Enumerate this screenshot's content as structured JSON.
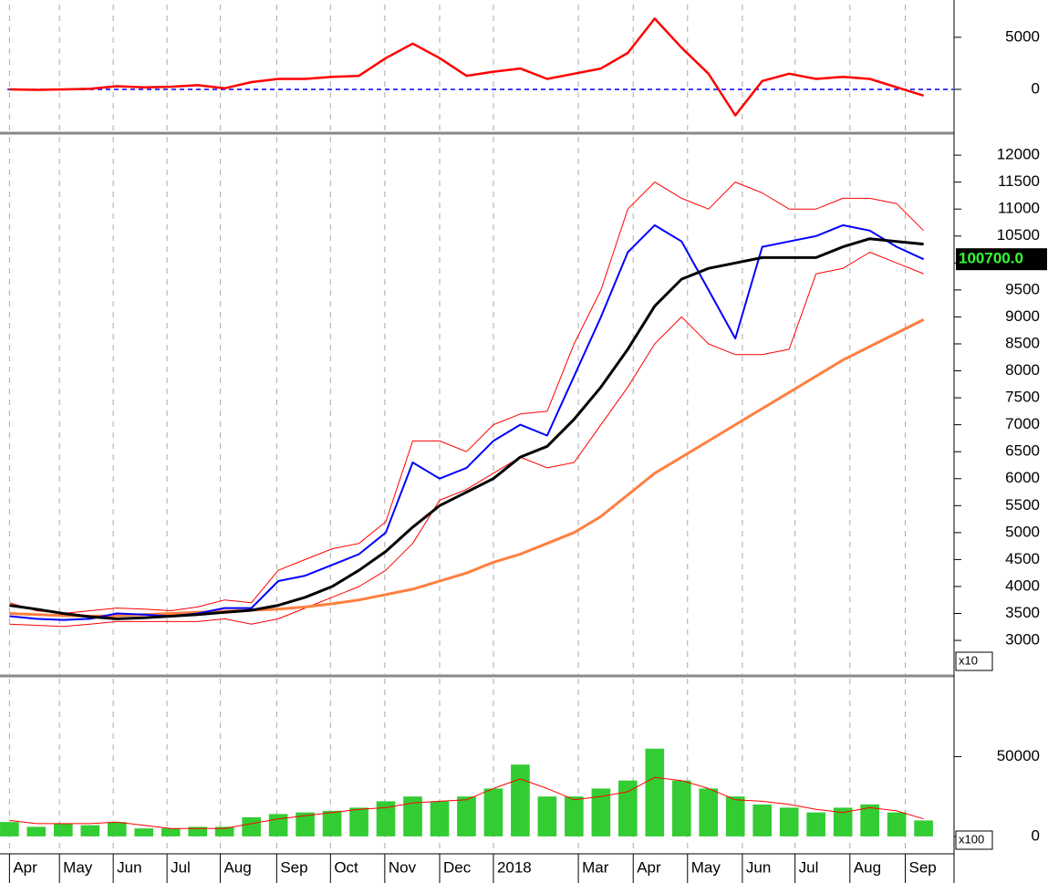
{
  "chart_data": [
    {
      "type": "line",
      "x": [
        0,
        0.5,
        1,
        1.5,
        2,
        2.5,
        3,
        3.5,
        4,
        4.5,
        5,
        5.5,
        6,
        6.5,
        7,
        7.5,
        8,
        8.5,
        9,
        9.5,
        10,
        10.5,
        11,
        11.5,
        12,
        12.5,
        13,
        13.5,
        14,
        14.5,
        15,
        15.5,
        16,
        16.5,
        17
      ],
      "xlim": [
        -0.04,
        17.55
      ],
      "ylim": [
        -3950,
        8150
      ],
      "yticks": [
        0,
        5000
      ],
      "reference_line": 0,
      "reference_color": "#0000ff",
      "series": [
        {
          "color": "#ff0000",
          "values": [
            0,
            -50,
            0,
            50,
            300,
            200,
            250,
            400,
            100,
            700,
            1000,
            1000,
            1200,
            1300,
            3000,
            4400,
            3000,
            1300,
            1700,
            2000,
            1000,
            1500,
            2000,
            3500,
            6800,
            4000,
            1500,
            -2500,
            800,
            1500,
            1000,
            1200,
            1000,
            200,
            -600
          ]
        }
      ]
    },
    {
      "type": "line",
      "x": [
        0,
        0.5,
        1,
        1.5,
        2,
        2.5,
        3,
        3.5,
        4,
        4.5,
        5,
        5.5,
        6,
        6.5,
        7,
        7.5,
        8,
        8.5,
        9,
        9.5,
        10,
        10.5,
        11,
        11.5,
        12,
        12.5,
        13,
        13.5,
        14,
        14.5,
        15,
        15.5,
        16,
        16.5,
        17
      ],
      "xlim": [
        -0.04,
        17.55
      ],
      "ylim": [
        2375,
        12340
      ],
      "yticks": [
        3000,
        3500,
        4000,
        4500,
        5000,
        5500,
        6000,
        6500,
        7000,
        7500,
        8000,
        8500,
        9000,
        9500,
        10000,
        10500,
        11000,
        11500,
        12000
      ],
      "unit_label": "x10",
      "last_value_label": "100700.0",
      "series": [
        {
          "color": "#ff0000",
          "width": 1,
          "values": [
            3700,
            3550,
            3500,
            3550,
            3600,
            3580,
            3550,
            3620,
            3750,
            3700,
            4300,
            4500,
            4700,
            4800,
            5200,
            6700,
            6700,
            6500,
            7000,
            7200,
            7250,
            8500,
            9500,
            11000,
            11500,
            11200,
            11000,
            11500,
            11300,
            11000,
            11000,
            11200,
            11200,
            11100,
            10600
          ]
        },
        {
          "color": "#ff0000",
          "width": 1,
          "values": [
            3300,
            3280,
            3260,
            3300,
            3350,
            3350,
            3350,
            3350,
            3400,
            3300,
            3400,
            3600,
            3800,
            4000,
            4300,
            4800,
            5600,
            5800,
            6100,
            6400,
            6200,
            6300,
            7000,
            7700,
            8500,
            9000,
            8500,
            8300,
            8300,
            8400,
            9800,
            9900,
            10200,
            10000,
            9800
          ]
        },
        {
          "color": "#ff7f3f",
          "width": 3,
          "values": [
            3500,
            3480,
            3460,
            3450,
            3460,
            3480,
            3500,
            3520,
            3540,
            3560,
            3580,
            3620,
            3680,
            3750,
            3850,
            3950,
            4100,
            4250,
            4450,
            4600,
            4800,
            5000,
            5300,
            5700,
            6100,
            6400,
            6700,
            7000,
            7300,
            7600,
            7900,
            8200,
            8450,
            8700,
            8950
          ]
        },
        {
          "color": "#0000ff",
          "width": 2,
          "values": [
            3450,
            3400,
            3380,
            3400,
            3500,
            3480,
            3450,
            3500,
            3600,
            3600,
            4100,
            4200,
            4400,
            4600,
            5000,
            6300,
            6000,
            6200,
            6700,
            7000,
            6800,
            7900,
            9000,
            10200,
            10700,
            10400,
            9500,
            8600,
            10300,
            10400,
            10500,
            10700,
            10600,
            10300,
            10070
          ]
        },
        {
          "color": "#000000",
          "width": 3,
          "values": [
            3650,
            3580,
            3500,
            3440,
            3400,
            3420,
            3450,
            3480,
            3520,
            3560,
            3650,
            3800,
            4000,
            4300,
            4650,
            5100,
            5500,
            5750,
            6000,
            6400,
            6600,
            7100,
            7700,
            8400,
            9200,
            9700,
            9900,
            10000,
            10100,
            10100,
            10100,
            10300,
            10450,
            10400,
            10350
          ]
        }
      ]
    },
    {
      "type": "bar",
      "x": [
        0,
        0.5,
        1,
        1.5,
        2,
        2.5,
        3,
        3.5,
        4,
        4.5,
        5,
        5.5,
        6,
        6.5,
        7,
        7.5,
        8,
        8.5,
        9,
        9.5,
        10,
        10.5,
        11,
        11.5,
        12,
        12.5,
        13,
        13.5,
        14,
        14.5,
        15,
        15.5,
        16,
        16.5,
        17
      ],
      "xlim": [
        -0.04,
        17.55
      ],
      "ylim": [
        -10350,
        98850
      ],
      "yticks": [
        0,
        50000
      ],
      "unit_label": "x100",
      "xticks": [
        {
          "value": 0,
          "label": "Apr"
        },
        {
          "value": 0.93,
          "label": "May"
        },
        {
          "value": 1.93,
          "label": "Jun"
        },
        {
          "value": 2.93,
          "label": "Jul"
        },
        {
          "value": 3.92,
          "label": "Aug"
        },
        {
          "value": 4.97,
          "label": "Sep"
        },
        {
          "value": 5.97,
          "label": "Oct"
        },
        {
          "value": 6.98,
          "label": "Nov"
        },
        {
          "value": 8.0,
          "label": "Dec"
        },
        {
          "value": 9.0,
          "label": "2018"
        },
        {
          "value": 10.58,
          "label": "Mar"
        },
        {
          "value": 11.6,
          "label": "Apr"
        },
        {
          "value": 12.61,
          "label": "May"
        },
        {
          "value": 13.63,
          "label": "Jun"
        },
        {
          "value": 14.61,
          "label": "Jul"
        },
        {
          "value": 15.63,
          "label": "Aug"
        },
        {
          "value": 16.66,
          "label": "Sep"
        }
      ],
      "series": [
        {
          "type": "bar",
          "color": "#33cc33",
          "values": [
            9000,
            6000,
            8000,
            7000,
            9000,
            5000,
            5000,
            6000,
            6000,
            12000,
            14000,
            15000,
            16000,
            18000,
            22000,
            25000,
            22000,
            25000,
            30000,
            45000,
            25000,
            25000,
            30000,
            35000,
            55000,
            35000,
            30000,
            25000,
            20000,
            18000,
            15000,
            18000,
            20000,
            15000,
            10000
          ]
        },
        {
          "type": "line",
          "color": "#ff0000",
          "width": 1,
          "values": [
            10000,
            8000,
            8000,
            8000,
            9000,
            7000,
            5000,
            5000,
            5000,
            8000,
            11000,
            13000,
            15000,
            17000,
            18000,
            21000,
            22000,
            23000,
            30000,
            36000,
            30000,
            23000,
            25000,
            28000,
            37000,
            35000,
            30000,
            23000,
            22000,
            20000,
            17000,
            15000,
            18000,
            16000,
            11000
          ]
        }
      ]
    }
  ]
}
